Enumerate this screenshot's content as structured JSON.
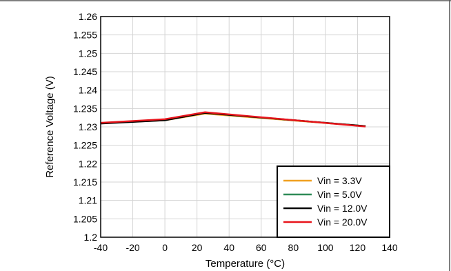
{
  "chart_data": {
    "type": "line",
    "xlabel": "Temperature (°C)",
    "ylabel": "Reference Voltage (V)",
    "xlim": [
      -40,
      140
    ],
    "ylim": [
      1.2,
      1.26
    ],
    "xticks": [
      "-40",
      "-20",
      "0",
      "20",
      "40",
      "60",
      "80",
      "100",
      "120",
      "140"
    ],
    "yticks": [
      "1.2",
      "1.205",
      "1.21",
      "1.215",
      "1.22",
      "1.225",
      "1.23",
      "1.235",
      "1.24",
      "1.245",
      "1.25",
      "1.255",
      "1.26"
    ],
    "grid": true,
    "legend_position": "bottom-right",
    "series": [
      {
        "name": "Vin = 3.3V",
        "color": "#f0a020",
        "x": [
          -40,
          0,
          25,
          125
        ],
        "y": [
          1.231,
          1.2318,
          1.2336,
          1.2302
        ]
      },
      {
        "name": "Vin = 5.0V",
        "color": "#2e8b57",
        "x": [
          -40,
          0,
          25,
          125
        ],
        "y": [
          1.231,
          1.2319,
          1.2338,
          1.2302
        ]
      },
      {
        "name": "Vin = 12.0V",
        "color": "#000000",
        "x": [
          -40,
          0,
          25,
          125
        ],
        "y": [
          1.2309,
          1.2318,
          1.2338,
          1.2302
        ]
      },
      {
        "name": "Vin = 20.0V",
        "color": "#e8141b",
        "x": [
          -40,
          0,
          25,
          125
        ],
        "y": [
          1.2311,
          1.2321,
          1.234,
          1.2301
        ]
      }
    ]
  }
}
